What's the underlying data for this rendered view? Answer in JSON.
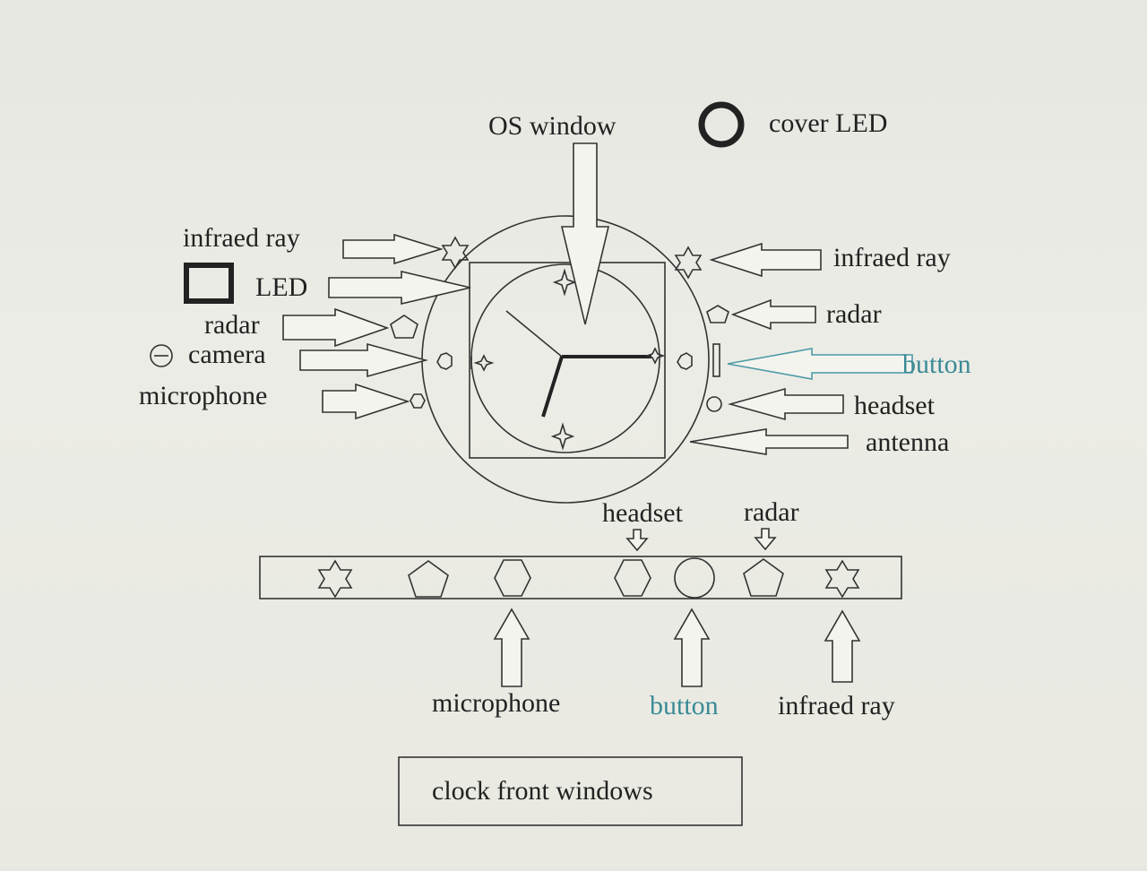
{
  "labels": {
    "os_window": "OS window",
    "cover_led": "cover LED",
    "infraed_ray_left": "infraed ray",
    "led": "LED",
    "radar_left": "radar",
    "camera": "camera",
    "microphone_left": "microphone",
    "infraed_ray_right": "infraed ray",
    "radar_right": "radar",
    "button_right": "button",
    "headset_right": "headset",
    "antenna": "antenna",
    "headset_strip": "headset",
    "radar_strip": "radar",
    "microphone_strip": "microphone",
    "button_strip": "button",
    "infraed_ray_strip": "infraed ray",
    "caption": "clock front windows"
  },
  "colors": {
    "ink": "#222222",
    "accent_blue": "#3a8a96"
  }
}
